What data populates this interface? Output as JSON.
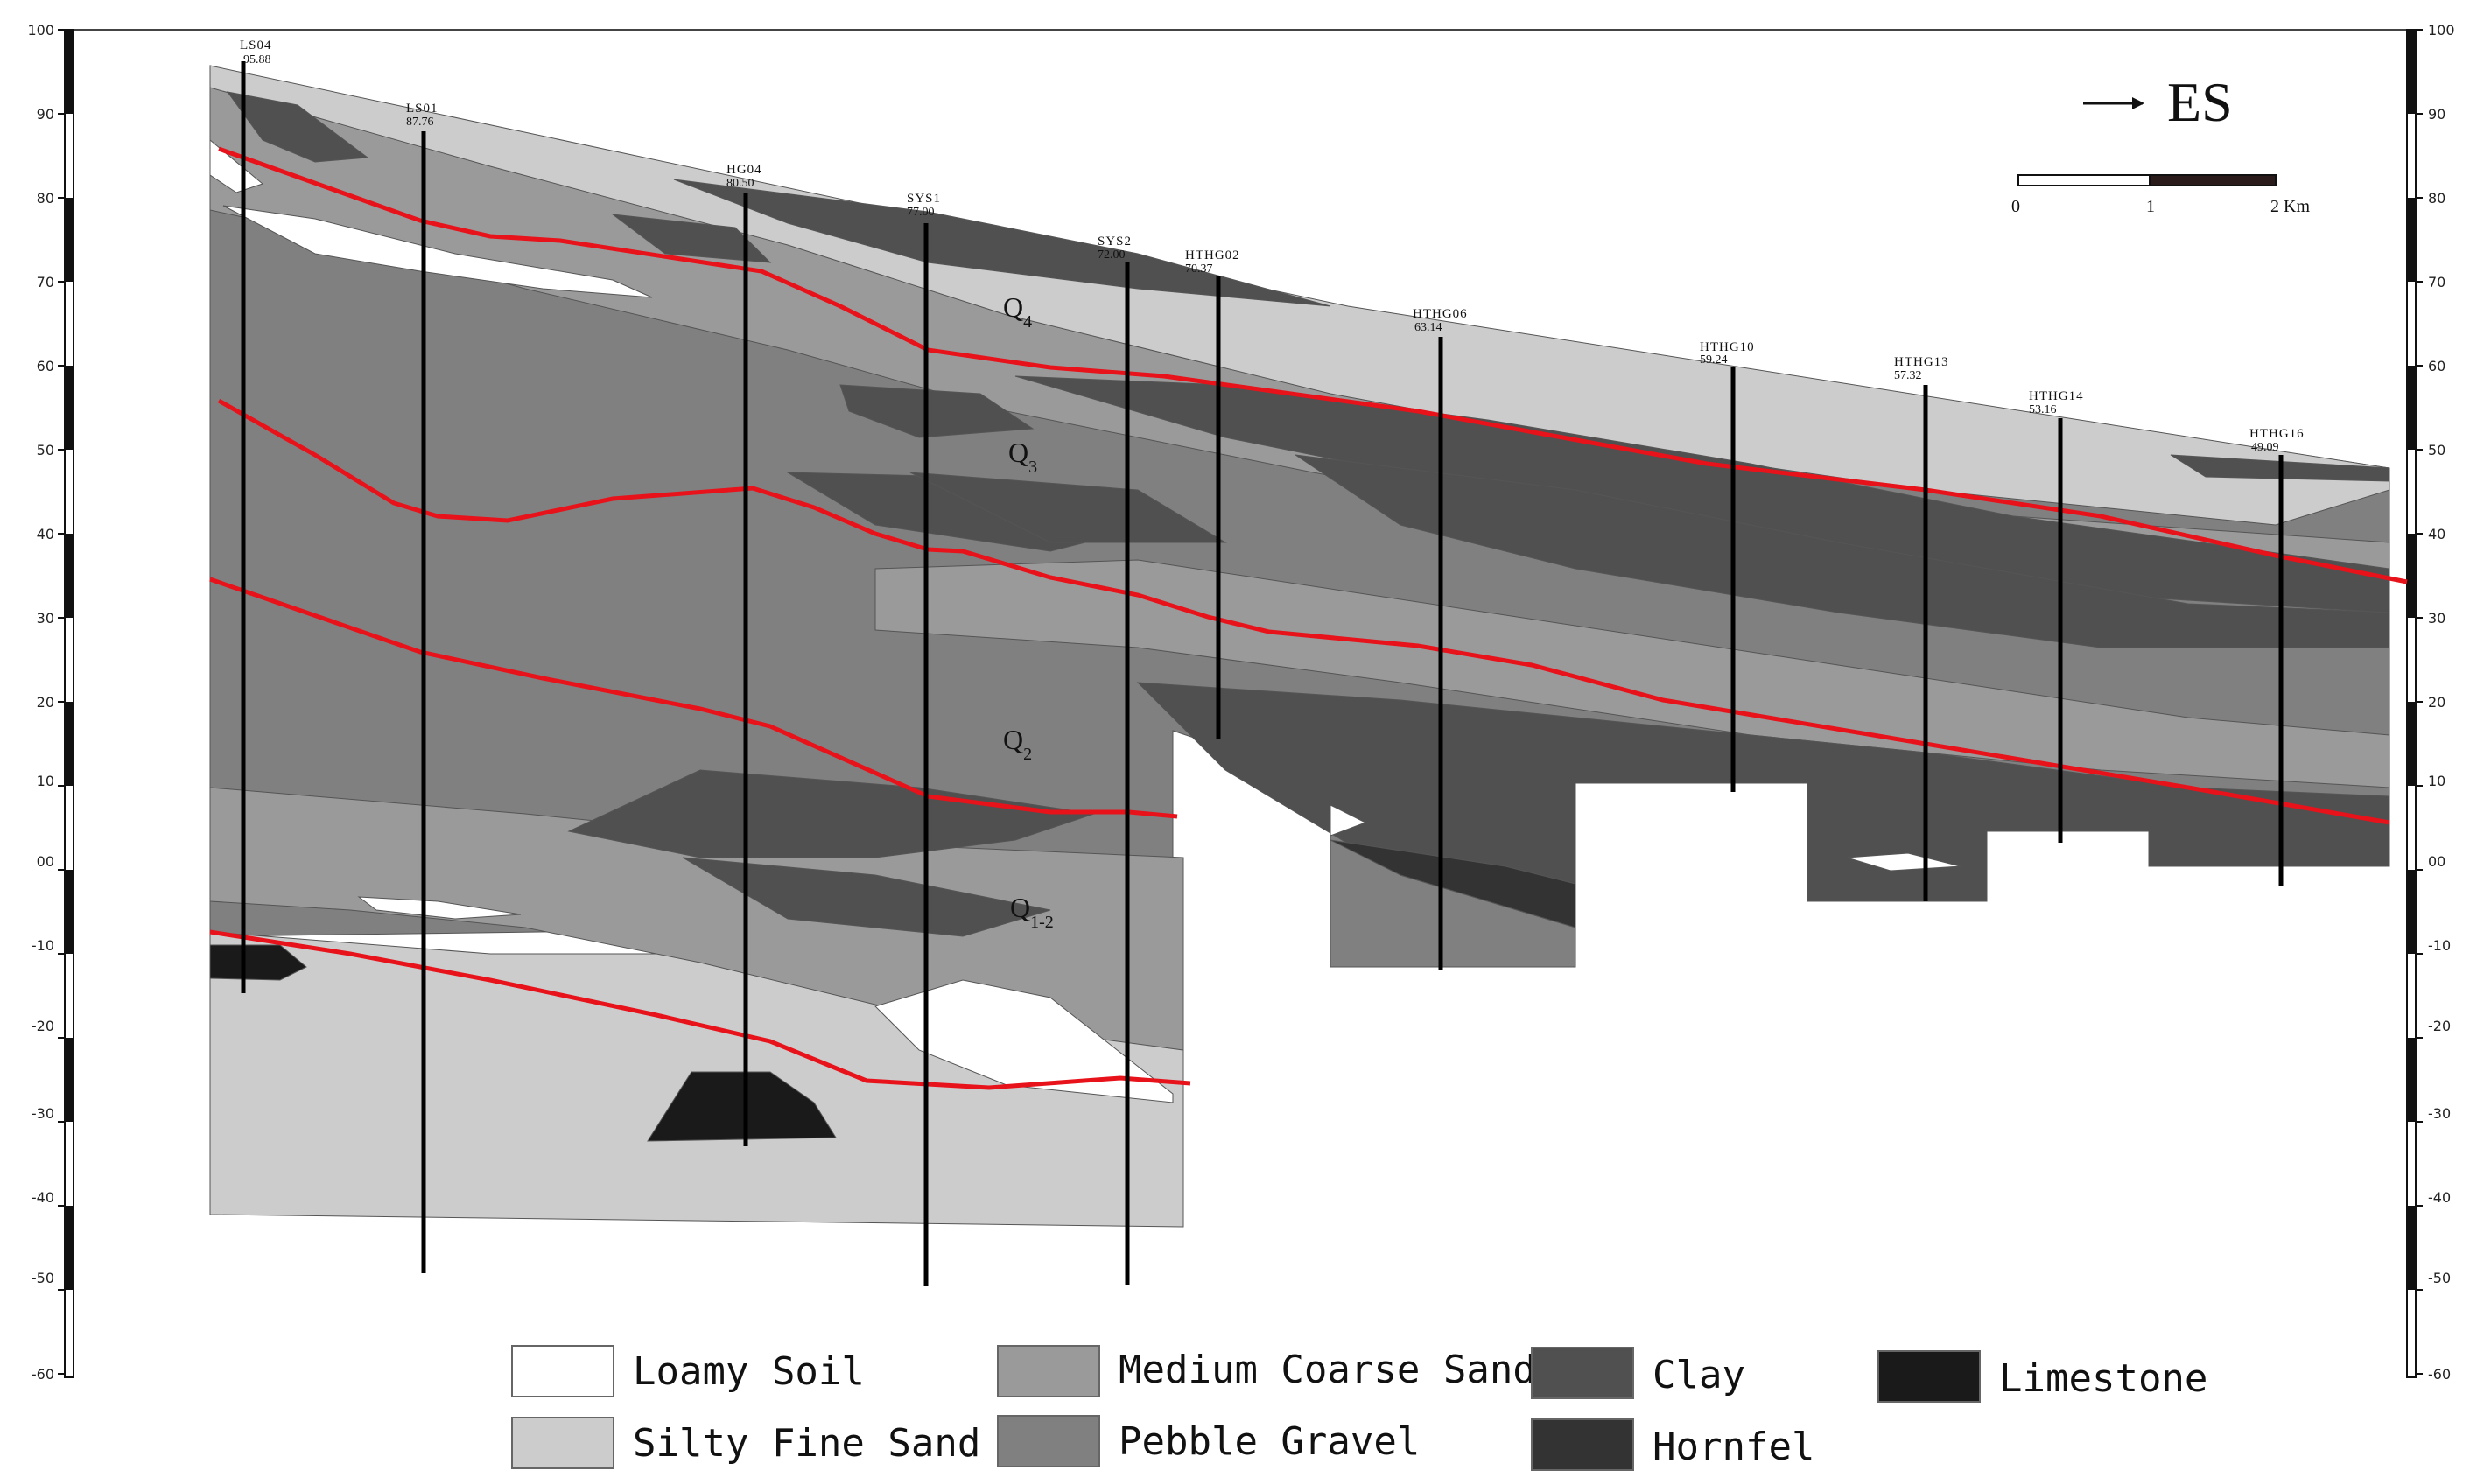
{
  "axis": {
    "ticks": [
      "100",
      "90",
      "80",
      "70",
      "60",
      "50",
      "40",
      "30",
      "20",
      "10",
      "00",
      "-10",
      "-20",
      "-30",
      "-40",
      "-50",
      "-60"
    ]
  },
  "boreholes": [
    {
      "name": "LS04",
      "elev": "95.88"
    },
    {
      "name": "LS01",
      "elev": "87.76"
    },
    {
      "name": "HG04",
      "elev": "80.50"
    },
    {
      "name": "SYS1",
      "elev": "77.00"
    },
    {
      "name": "SYS2",
      "elev": "72.00"
    },
    {
      "name": "HTHG02",
      "elev": "70.37"
    },
    {
      "name": "HTHG06",
      "elev": "63.14"
    },
    {
      "name": "HTHG10",
      "elev": "59.24"
    },
    {
      "name": "HTHG13",
      "elev": "57.32"
    },
    {
      "name": "HTHG14",
      "elev": "53.16"
    },
    {
      "name": "HTHG16",
      "elev": "49.09"
    }
  ],
  "strata_labels": [
    {
      "main": "Q",
      "sub": "4"
    },
    {
      "main": "Q",
      "sub": "3"
    },
    {
      "main": "Q",
      "sub": "2"
    },
    {
      "main": "Q",
      "sub": "1-2"
    }
  ],
  "direction": {
    "arrow": "→",
    "label": "ES"
  },
  "scale": {
    "ticks": [
      "0",
      "1",
      "2 Km"
    ]
  },
  "legend": [
    {
      "label": "Loamy Soil",
      "color": "#ffffff"
    },
    {
      "label": "Medium Coarse Sand",
      "color": "#9a9a9a"
    },
    {
      "label": "Clay",
      "color": "#505050"
    },
    {
      "label": "Limestone",
      "color": "#1a1a1a"
    },
    {
      "label": "Silty Fine Sand",
      "color": "#cccccc"
    },
    {
      "label": "Pebble Gravel",
      "color": "#808080"
    },
    {
      "label": "Hornfel",
      "color": "#333333"
    }
  ],
  "colors": {
    "boundary": "#e8121a",
    "borehole": "#000000"
  }
}
